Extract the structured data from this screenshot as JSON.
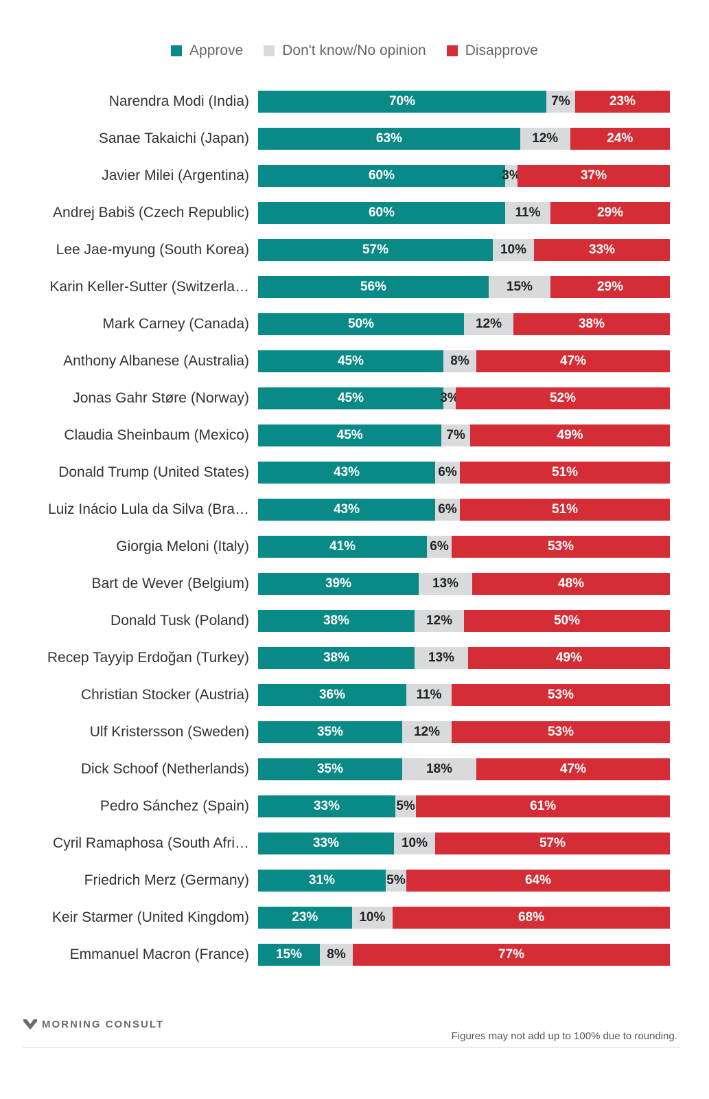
{
  "chart_data": {
    "type": "bar",
    "orientation": "horizontal",
    "stacked": true,
    "normalized_to": 100,
    "legend_position": "top",
    "series": [
      {
        "name": "Approve",
        "color": "#0a8a86",
        "values": [
          70,
          63,
          60,
          60,
          57,
          56,
          50,
          45,
          45,
          45,
          43,
          43,
          41,
          39,
          38,
          38,
          36,
          35,
          35,
          33,
          33,
          31,
          23,
          15
        ]
      },
      {
        "name": "Don't know/No opinion",
        "color": "#d9dadb",
        "values": [
          7,
          12,
          3,
          11,
          10,
          15,
          12,
          8,
          3,
          7,
          6,
          6,
          6,
          13,
          12,
          13,
          11,
          12,
          18,
          5,
          10,
          5,
          10,
          8
        ]
      },
      {
        "name": "Disapprove",
        "color": "#d42d35",
        "values": [
          23,
          24,
          37,
          29,
          33,
          29,
          38,
          47,
          52,
          49,
          51,
          51,
          53,
          48,
          50,
          49,
          53,
          53,
          47,
          61,
          57,
          64,
          68,
          77
        ]
      }
    ],
    "categories": [
      "Narendra Modi (India)",
      "Sanae Takaichi (Japan)",
      "Javier Milei (Argentina)",
      "Andrej Babiš (Czech Republic)",
      "Lee Jae-myung (South Korea)",
      "Karin Keller-Sutter (Switzerla…",
      "Mark Carney (Canada)",
      "Anthony Albanese (Australia)",
      "Jonas Gahr Støre (Norway)",
      "Claudia Sheinbaum (Mexico)",
      "Donald Trump (United States)",
      "Luiz Inácio Lula da Silva (Bra…",
      "Giorgia Meloni (Italy)",
      "Bart de Wever (Belgium)",
      "Donald Tusk (Poland)",
      "Recep Tayyip Erdoğan (Turkey)",
      "Christian Stocker (Austria)",
      "Ulf Kristersson (Sweden)",
      "Dick Schoof (Netherlands)",
      "Pedro Sánchez (Spain)",
      "Cyril Ramaphosa (South Afri…",
      "Friedrich Merz (Germany)",
      "Keir Starmer (United Kingdom)",
      "Emmanuel Macron (France)"
    ],
    "value_suffix": "%"
  },
  "legend": {
    "approve": "Approve",
    "dontknow": "Don't know/No opinion",
    "disapprove": "Disapprove"
  },
  "footer": {
    "brand": "MORNING CONSULT",
    "note": "Figures may not add up to 100% due to rounding."
  },
  "colors": {
    "approve": "#0a8a86",
    "dontknow": "#d9dadb",
    "disapprove": "#d42d35",
    "brand_gray": "#6b6b6b"
  }
}
